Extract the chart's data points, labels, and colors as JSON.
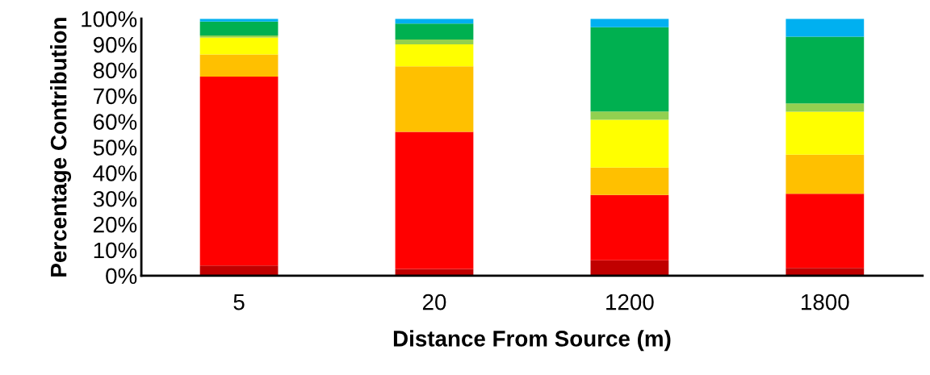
{
  "chart_data": {
    "type": "bar",
    "stacked": true,
    "xlabel": "Distance From Source (m)",
    "ylabel": "Percentage Contribution",
    "categories": [
      "5",
      "20",
      "1200",
      "1800"
    ],
    "series": [
      {
        "color": "#c00000",
        "values": [
          3.9,
          2.6,
          6.0,
          3.0
        ]
      },
      {
        "color": "#ff0000",
        "values": [
          73.6,
          53.4,
          25.4,
          28.9
        ]
      },
      {
        "color": "#ffc000",
        "values": [
          8.6,
          25.5,
          10.7,
          15.2
        ]
      },
      {
        "color": "#ffff00",
        "values": [
          6.6,
          8.5,
          18.6,
          16.7
        ]
      },
      {
        "color": "#92d050",
        "values": [
          0.8,
          1.9,
          3.2,
          3.2
        ]
      },
      {
        "color": "#00b050",
        "values": [
          5.4,
          6.2,
          32.8,
          26.0
        ]
      },
      {
        "color": "#00b0f0",
        "values": [
          1.1,
          1.9,
          3.3,
          7.0
        ]
      }
    ],
    "ylim": [
      0,
      100
    ],
    "yticks": [
      {
        "value": 0,
        "label": "0%"
      },
      {
        "value": 10,
        "label": "10%"
      },
      {
        "value": 20,
        "label": "20%"
      },
      {
        "value": 30,
        "label": "30%"
      },
      {
        "value": 40,
        "label": "40%"
      },
      {
        "value": 50,
        "label": "50%"
      },
      {
        "value": 60,
        "label": "60%"
      },
      {
        "value": 70,
        "label": "70%"
      },
      {
        "value": 80,
        "label": "80%"
      },
      {
        "value": 90,
        "label": "90%"
      },
      {
        "value": 100,
        "label": "100%"
      }
    ],
    "grid": false,
    "legend": false
  }
}
